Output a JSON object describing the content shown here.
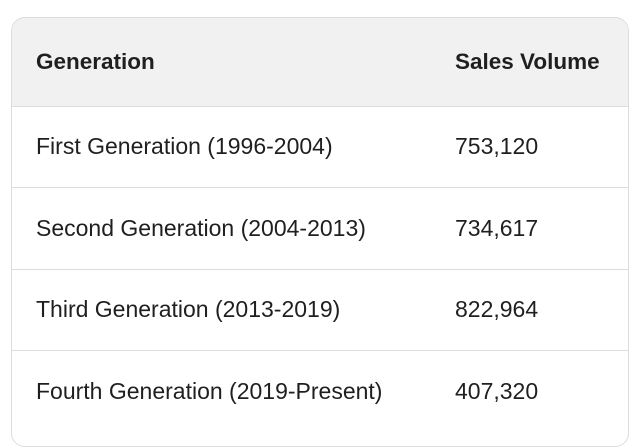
{
  "chart_data": {
    "type": "table",
    "columns": [
      "Generation",
      "Sales Volume"
    ],
    "rows": [
      [
        "First Generation (1996-2004)",
        "753,120"
      ],
      [
        "Second Generation (2004-2013)",
        "734,617"
      ],
      [
        "Third Generation (2013-2019)",
        "822,964"
      ],
      [
        "Fourth Generation (2019-Present)",
        "407,320"
      ]
    ]
  },
  "colors": {
    "header_bg": "#f1f1f1",
    "border": "#dadce0",
    "text": "#1f1f1f"
  }
}
